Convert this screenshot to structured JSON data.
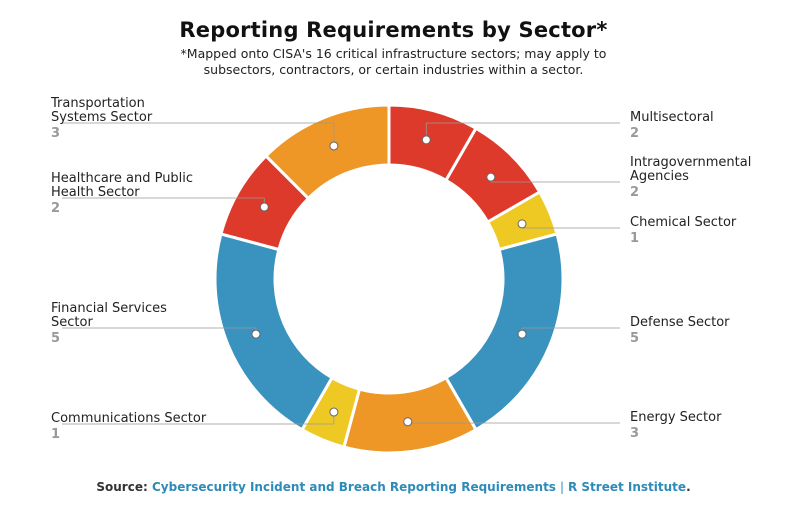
{
  "header": {
    "title": "Reporting Requirements by Sector*",
    "subtitle": "*Mapped onto CISA's 16 critical infrastructure sectors; may apply to subsectors, contractors, or certain industries within a sector."
  },
  "footer": {
    "source_label": "Source:",
    "source_link": "Cybersecurity Incident and Breach Reporting Requirements",
    "separator": "|",
    "publisher": "R Street Institute",
    "end": "."
  },
  "chart_data": {
    "type": "pie",
    "donut": true,
    "title": "Reporting Requirements by Sector*",
    "slices": [
      {
        "label": "Multisectoral",
        "value": 2,
        "color": "#de3a2b"
      },
      {
        "label": "Intragovernmental Agencies",
        "value": 2,
        "color": "#de3a2b"
      },
      {
        "label": "Chemical Sector",
        "value": 1,
        "color": "#efc923"
      },
      {
        "label": "Defense Sector",
        "value": 5,
        "color": "#3a93be"
      },
      {
        "label": "Energy Sector",
        "value": 3,
        "color": "#ee9626"
      },
      {
        "label": "Communications Sector",
        "value": 1,
        "color": "#efc923"
      },
      {
        "label": "Financial Services Sector",
        "value": 5,
        "color": "#3a93be"
      },
      {
        "label": "Healthcare and Public Health Sector",
        "value": 2,
        "color": "#de3a2b"
      },
      {
        "label": "Transportation Systems Sector",
        "value": 3,
        "color": "#ee9626"
      }
    ]
  }
}
